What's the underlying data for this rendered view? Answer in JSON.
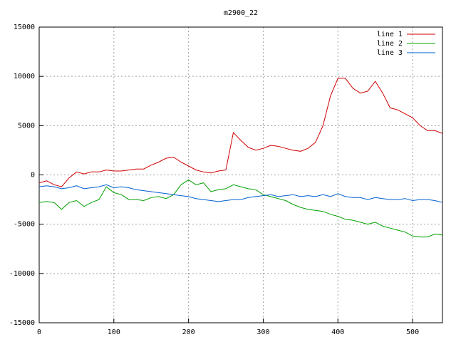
{
  "chart_data": {
    "type": "line",
    "title": "m2900_22",
    "x": [
      0,
      10,
      20,
      30,
      40,
      50,
      60,
      70,
      80,
      90,
      100,
      110,
      120,
      130,
      140,
      150,
      160,
      170,
      180,
      190,
      200,
      210,
      220,
      230,
      240,
      250,
      260,
      270,
      280,
      290,
      300,
      310,
      320,
      330,
      340,
      350,
      360,
      370,
      380,
      390,
      400,
      410,
      420,
      430,
      440,
      450,
      460,
      470,
      480,
      490,
      500,
      510,
      520,
      530,
      540
    ],
    "series": [
      {
        "name": "line 1",
        "color": "#d00000",
        "values": [
          -800,
          -600,
          -1000,
          -1200,
          -300,
          300,
          100,
          300,
          300,
          500,
          400,
          400,
          500,
          600,
          600,
          1000,
          1300,
          1700,
          1800,
          1300,
          900,
          500,
          300,
          200,
          400,
          500,
          4300,
          3500,
          2800,
          2500,
          2700,
          3000,
          2900,
          2700,
          2500,
          2400,
          2700,
          3300,
          5000,
          8000,
          9800,
          9800,
          8800,
          8300,
          8500,
          9500,
          8300,
          6800,
          6600,
          6200,
          5800,
          5000,
          4500,
          4500,
          4200
        ]
      },
      {
        "name": "line 2",
        "color": "#00a000",
        "values": [
          -2800,
          -2700,
          -2800,
          -3500,
          -2800,
          -2600,
          -3200,
          -2800,
          -2500,
          -1200,
          -1800,
          -2000,
          -2500,
          -2500,
          -2600,
          -2300,
          -2200,
          -2400,
          -2000,
          -1000,
          -500,
          -1000,
          -800,
          -1700,
          -1500,
          -1400,
          -1000,
          -1200,
          -1400,
          -1500,
          -2000,
          -2200,
          -2400,
          -2600,
          -3000,
          -3300,
          -3500,
          -3600,
          -3700,
          -4000,
          -4200,
          -4500,
          -4600,
          -4800,
          -5000,
          -4800,
          -5200,
          -5400,
          -5600,
          -5800,
          -6200,
          -6300,
          -6300,
          -6000,
          -6100
        ]
      },
      {
        "name": "line 3",
        "color": "#0060d0",
        "values": [
          -1200,
          -1100,
          -1200,
          -1400,
          -1300,
          -1100,
          -1400,
          -1300,
          -1200,
          -1000,
          -1300,
          -1200,
          -1300,
          -1500,
          -1600,
          -1700,
          -1800,
          -1900,
          -2000,
          -2100,
          -2200,
          -2400,
          -2500,
          -2600,
          -2700,
          -2600,
          -2500,
          -2500,
          -2300,
          -2200,
          -2100,
          -2000,
          -2200,
          -2100,
          -2000,
          -2200,
          -2100,
          -2200,
          -2000,
          -2200,
          -1900,
          -2200,
          -2300,
          -2300,
          -2500,
          -2300,
          -2400,
          -2500,
          -2500,
          -2400,
          -2600,
          -2500,
          -2500,
          -2600,
          -2800
        ]
      }
    ],
    "xlim": [
      0,
      540
    ],
    "xticks": [
      0,
      100,
      200,
      300,
      400,
      500
    ],
    "ylim": [
      -15000,
      15000
    ],
    "yticks": [
      -15000,
      -10000,
      -5000,
      0,
      5000,
      10000,
      15000
    ],
    "grid": true,
    "legend": "top-right"
  }
}
